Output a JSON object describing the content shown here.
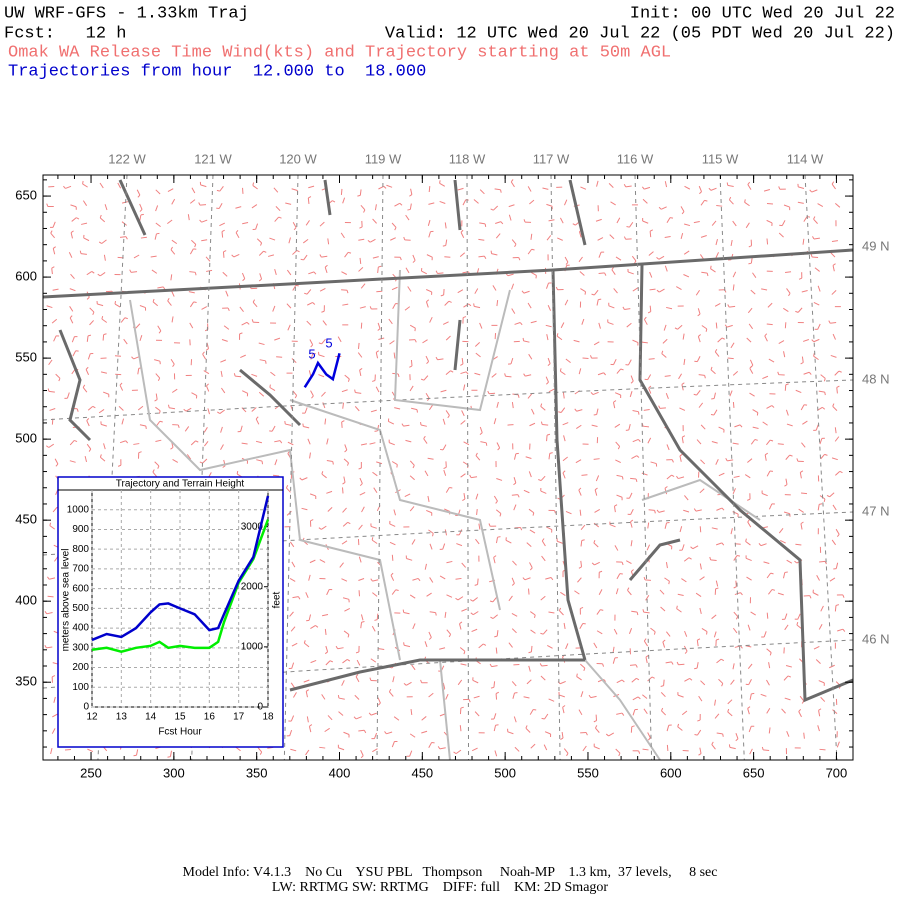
{
  "header": {
    "line1_left": "UW WRF-GFS - 1.33km Traj",
    "line1_right": "Init: 00 UTC Wed 20 Jul 22",
    "line2_left": "Fcst:   12 h",
    "line2_right": "Valid: 12 UTC Wed 20 Jul 22 (05 PDT Wed 20 Jul 22)",
    "line3": "Omak WA Release Time Wind(kts) and Trajectory starting at 50m AGL",
    "line4": "Trajectories from hour  12.000 to  18.000"
  },
  "map": {
    "xlim": [
      221,
      710
    ],
    "ylim": [
      302,
      663
    ],
    "xticks": [
      250,
      300,
      350,
      400,
      450,
      500,
      550,
      600,
      650,
      700
    ],
    "yticks": [
      350,
      400,
      450,
      500,
      550,
      600,
      650
    ],
    "lon_labels": [
      "122 W",
      "121 W",
      "120 W",
      "119 W",
      "118 W",
      "117 W",
      "116 W",
      "115 W",
      "114 W"
    ],
    "lat_labels": [
      "49 N",
      "48 N",
      "47 N",
      "46 N"
    ],
    "trajectory": {
      "color": "#0000dd",
      "x": [
        379,
        384,
        387,
        392,
        396,
        400
      ],
      "y": [
        532,
        540,
        547,
        540,
        537,
        553
      ],
      "labels": [
        "5",
        "5"
      ]
    }
  },
  "inset": {
    "type": "line",
    "title": "Trajectory and Terrain Height",
    "ylabel": "meters above sea level",
    "y2label": "feet",
    "xlabel": "Fcst Hour",
    "x": [
      12,
      12.5,
      13,
      13.5,
      14,
      14.3,
      14.6,
      15,
      15.5,
      16,
      16.3,
      16.5,
      17,
      17.5,
      18
    ],
    "series": [
      {
        "color": "#0000cc",
        "values": [
          340,
          370,
          355,
          400,
          480,
          520,
          525,
          500,
          470,
          390,
          400,
          470,
          640,
          760,
          1070
        ]
      },
      {
        "color": "#00ee00",
        "values": [
          290,
          300,
          280,
          300,
          310,
          330,
          300,
          310,
          300,
          300,
          330,
          430,
          630,
          750,
          950
        ]
      }
    ],
    "xlim": [
      12,
      18
    ],
    "ylim": [
      0,
      1100
    ],
    "y2lim": [
      0,
      3609
    ],
    "xticks": [
      12,
      13,
      14,
      15,
      16,
      17,
      18
    ],
    "yticks": [
      0,
      100,
      200,
      300,
      400,
      500,
      600,
      700,
      800,
      900,
      1000
    ],
    "y2ticks": [
      0,
      1000,
      2000,
      3000
    ],
    "grid": true
  },
  "footer": {
    "line1": "Model Info: V4.1.3    No Cu    YSU PBL   Thompson     Noah-MP    1.3 km,  37 levels,     8 sec",
    "line2": "LW: RRTMG SW: RRTMG    DIFF: full    KM: 2D Smagor"
  }
}
